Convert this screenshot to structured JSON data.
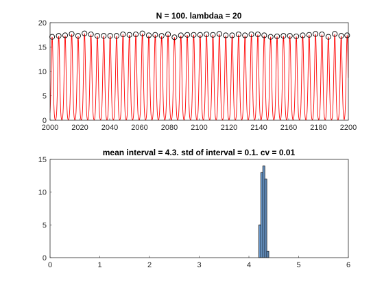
{
  "chart_data": [
    {
      "type": "line",
      "title": "N = 100. lambdaa = 20",
      "xlabel": "",
      "ylabel": "",
      "xlim": [
        2000,
        2200
      ],
      "ylim": [
        0,
        20
      ],
      "x_ticks": [
        2000,
        2020,
        2040,
        2060,
        2080,
        2100,
        2120,
        2140,
        2160,
        2180,
        2200
      ],
      "y_ticks": [
        0,
        5,
        10,
        15,
        20
      ],
      "grid": false,
      "legend": "none",
      "series": [
        {
          "style": "periodic spike train (line)",
          "color": "#ff0000",
          "peak_width": 0.9,
          "peaks": [
            {
              "x": 2001.4,
              "y": 17.1
            },
            {
              "x": 2005.8,
              "y": 17.3
            },
            {
              "x": 2010.1,
              "y": 17.4
            },
            {
              "x": 2014.5,
              "y": 17.7
            },
            {
              "x": 2018.8,
              "y": 17.3
            },
            {
              "x": 2023.1,
              "y": 17.8
            },
            {
              "x": 2027.4,
              "y": 17.6
            },
            {
              "x": 2031.7,
              "y": 17.3
            },
            {
              "x": 2036.0,
              "y": 17.3
            },
            {
              "x": 2040.3,
              "y": 17.3
            },
            {
              "x": 2044.6,
              "y": 17.3
            },
            {
              "x": 2048.9,
              "y": 17.6
            },
            {
              "x": 2053.2,
              "y": 17.5
            },
            {
              "x": 2057.5,
              "y": 17.6
            },
            {
              "x": 2061.9,
              "y": 17.8
            },
            {
              "x": 2066.2,
              "y": 17.4
            },
            {
              "x": 2070.5,
              "y": 17.5
            },
            {
              "x": 2074.8,
              "y": 17.3
            },
            {
              "x": 2079.1,
              "y": 17.6
            },
            {
              "x": 2083.4,
              "y": 17.0
            },
            {
              "x": 2087.7,
              "y": 17.4
            },
            {
              "x": 2092.0,
              "y": 17.5
            },
            {
              "x": 2096.3,
              "y": 17.5
            },
            {
              "x": 2100.6,
              "y": 17.5
            },
            {
              "x": 2104.9,
              "y": 17.6
            },
            {
              "x": 2109.2,
              "y": 17.5
            },
            {
              "x": 2113.5,
              "y": 17.7
            },
            {
              "x": 2117.8,
              "y": 17.4
            },
            {
              "x": 2122.1,
              "y": 17.4
            },
            {
              "x": 2126.4,
              "y": 17.6
            },
            {
              "x": 2130.7,
              "y": 17.4
            },
            {
              "x": 2135.0,
              "y": 17.6
            },
            {
              "x": 2139.3,
              "y": 17.6
            },
            {
              "x": 2143.6,
              "y": 17.4
            },
            {
              "x": 2147.9,
              "y": 17.1
            },
            {
              "x": 2152.2,
              "y": 17.2
            },
            {
              "x": 2156.5,
              "y": 17.3
            },
            {
              "x": 2160.8,
              "y": 17.3
            },
            {
              "x": 2165.1,
              "y": 17.2
            },
            {
              "x": 2169.4,
              "y": 17.4
            },
            {
              "x": 2173.7,
              "y": 17.5
            },
            {
              "x": 2178.0,
              "y": 17.7
            },
            {
              "x": 2182.3,
              "y": 17.6
            },
            {
              "x": 2186.6,
              "y": 17.1
            },
            {
              "x": 2190.9,
              "y": 17.7
            },
            {
              "x": 2195.2,
              "y": 17.3
            },
            {
              "x": 2199.2,
              "y": 17.4
            }
          ]
        },
        {
          "style": "markers (open circles)",
          "color": "#000000",
          "points": "peaks"
        }
      ]
    },
    {
      "type": "bar",
      "title": "mean interval = 4.3. std of interval = 0.1. cv = 0.01",
      "xlabel": "",
      "ylabel": "",
      "xlim": [
        0,
        6
      ],
      "ylim": [
        0,
        15
      ],
      "x_ticks": [
        0,
        1,
        2,
        3,
        4,
        5,
        6
      ],
      "y_ticks": [
        0,
        5,
        10,
        15
      ],
      "grid": false,
      "legend": "none",
      "bar_color": "#6f9ed2",
      "bin_width": 0.04,
      "bins": [
        {
          "x": 4.22,
          "count": 5
        },
        {
          "x": 4.26,
          "count": 13
        },
        {
          "x": 4.3,
          "count": 14
        },
        {
          "x": 4.34,
          "count": 12
        },
        {
          "x": 4.38,
          "count": 1
        }
      ]
    }
  ]
}
